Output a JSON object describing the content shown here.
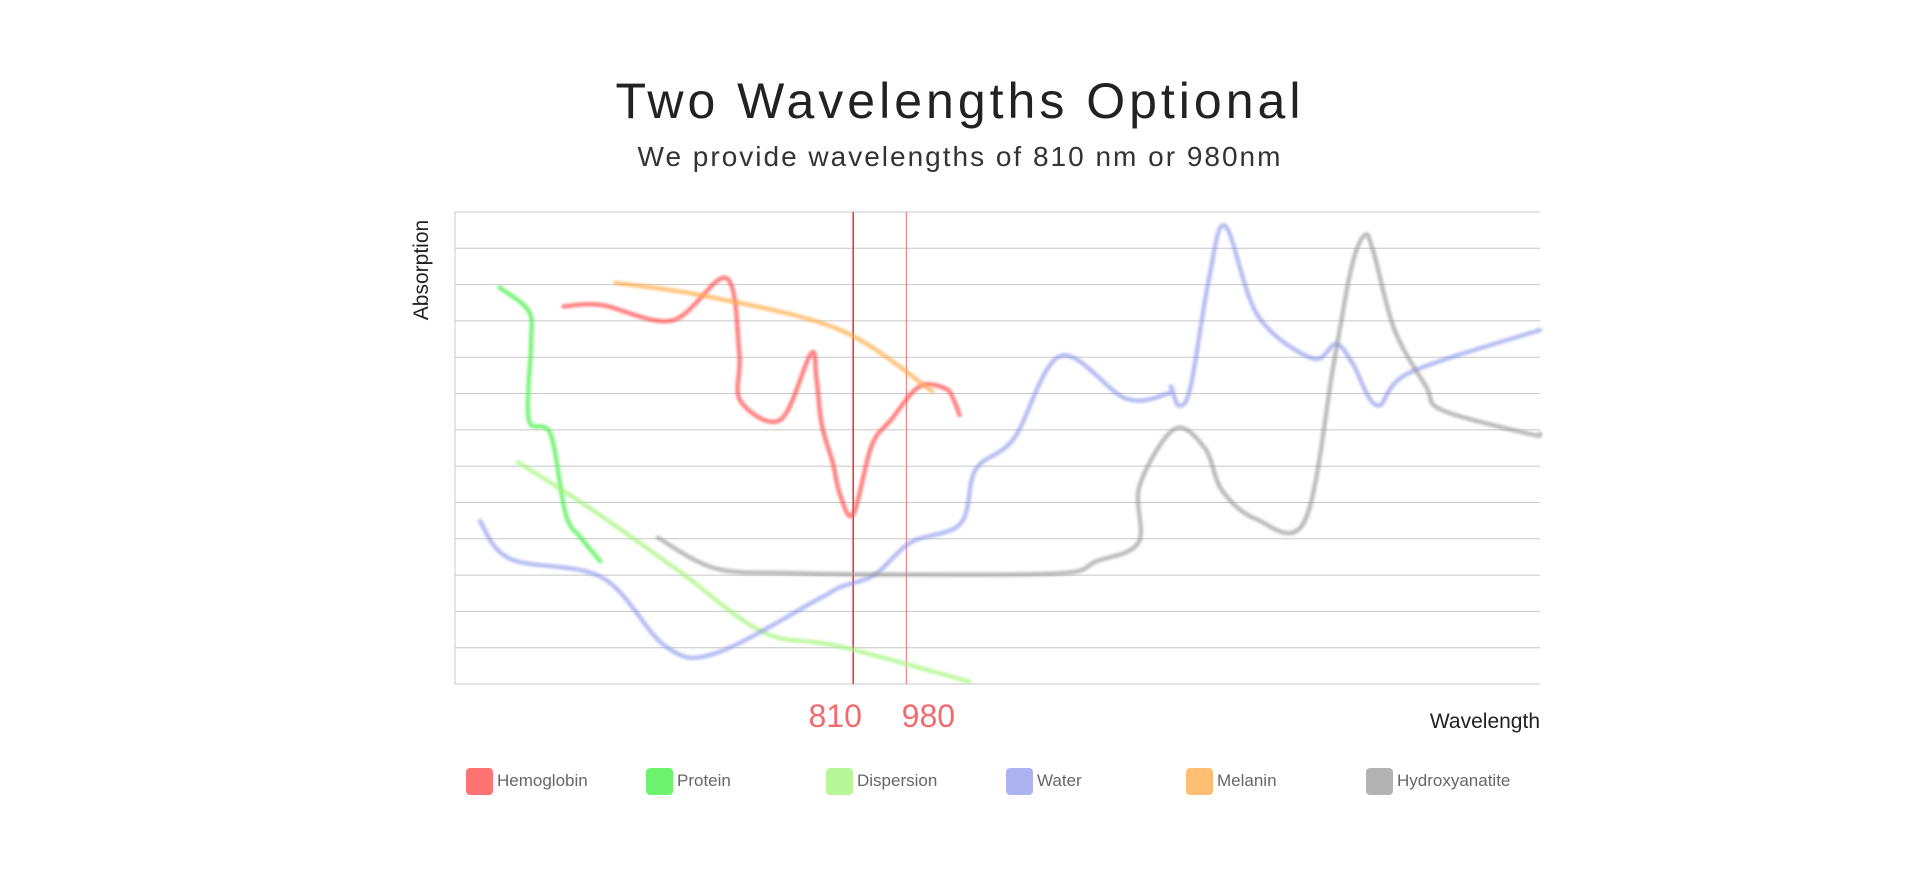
{
  "header": {
    "title": "Two Wavelengths Optional",
    "subtitle": "We provide wavelengths of 810 nm or 980nm"
  },
  "chart_data": {
    "type": "line",
    "ylabel": "Absorption",
    "xlabel": "Wavelength",
    "grid": true,
    "legend_position": "bottom",
    "xlim": [
      0,
      1000
    ],
    "ylim": [
      0,
      1000
    ],
    "markers": [
      {
        "label": "810",
        "x": 367,
        "color": "#e8383d"
      },
      {
        "label": "980",
        "x": 416,
        "color": "#f07a7c"
      }
    ],
    "series": [
      {
        "name": "Hemoglobin",
        "color": "#ff5a5a",
        "opacity": 0.75,
        "points": [
          [
            100,
            800
          ],
          [
            135,
            803
          ],
          [
            200,
            770
          ],
          [
            250,
            860
          ],
          [
            262,
            700
          ],
          [
            263,
            600
          ],
          [
            300,
            560
          ],
          [
            328,
            700
          ],
          [
            333,
            650
          ],
          [
            338,
            550
          ],
          [
            348,
            470
          ],
          [
            355,
            400
          ],
          [
            367,
            360
          ],
          [
            384,
            505
          ],
          [
            402,
            560
          ],
          [
            428,
            630
          ],
          [
            452,
            626
          ],
          [
            460,
            600
          ],
          [
            465,
            570
          ]
        ]
      },
      {
        "name": "Protein",
        "color": "#5df25d",
        "opacity": 0.8,
        "points": [
          [
            41,
            840
          ],
          [
            68,
            790
          ],
          [
            70,
            720
          ],
          [
            68,
            560
          ],
          [
            88,
            530
          ],
          [
            102,
            360
          ],
          [
            116,
            310
          ],
          [
            134,
            260
          ]
        ]
      },
      {
        "name": "Dispersion",
        "color": "#a6f57f",
        "opacity": 0.7,
        "points": [
          [
            58,
            470
          ],
          [
            126,
            370
          ],
          [
            206,
            240
          ],
          [
            284,
            110
          ],
          [
            354,
            80
          ],
          [
            474,
            5
          ]
        ]
      },
      {
        "name": "Water",
        "color": "#8a93ea",
        "opacity": 0.6,
        "points": [
          [
            23,
            345
          ],
          [
            51,
            265
          ],
          [
            136,
            225
          ],
          [
            194,
            80
          ],
          [
            240,
            65
          ],
          [
            335,
            180
          ],
          [
            355,
            205
          ],
          [
            387,
            232
          ],
          [
            420,
            300
          ],
          [
            466,
            340
          ],
          [
            480,
            455
          ],
          [
            515,
            520
          ],
          [
            558,
            695
          ],
          [
            618,
            605
          ],
          [
            657,
            615
          ],
          [
            660,
            630
          ],
          [
            667,
            590
          ],
          [
            678,
            630
          ],
          [
            695,
            860
          ],
          [
            710,
            970
          ],
          [
            740,
            780
          ],
          [
            790,
            690
          ],
          [
            812,
            720
          ],
          [
            827,
            680
          ],
          [
            850,
            590
          ],
          [
            880,
            660
          ],
          [
            1000,
            750
          ]
        ]
      },
      {
        "name": "Melanin",
        "color": "#ffae4e",
        "opacity": 0.7,
        "points": [
          [
            148,
            850
          ],
          [
            235,
            820
          ],
          [
            355,
            750
          ],
          [
            440,
            620
          ]
        ]
      },
      {
        "name": "Hydroxyanatite",
        "color": "#9a9a9a",
        "opacity": 0.65,
        "points": [
          [
            187,
            310
          ],
          [
            240,
            245
          ],
          [
            310,
            235
          ],
          [
            430,
            232
          ],
          [
            560,
            235
          ],
          [
            591,
            260
          ],
          [
            630,
            300
          ],
          [
            631,
            420
          ],
          [
            663,
            540
          ],
          [
            691,
            500
          ],
          [
            707,
            410
          ],
          [
            738,
            350
          ],
          [
            783,
            345
          ],
          [
            810,
            680
          ],
          [
            826,
            880
          ],
          [
            838,
            950
          ],
          [
            846,
            920
          ],
          [
            866,
            750
          ],
          [
            895,
            630
          ],
          [
            910,
            580
          ],
          [
            990,
            530
          ],
          [
            1000,
            530
          ]
        ]
      }
    ]
  }
}
